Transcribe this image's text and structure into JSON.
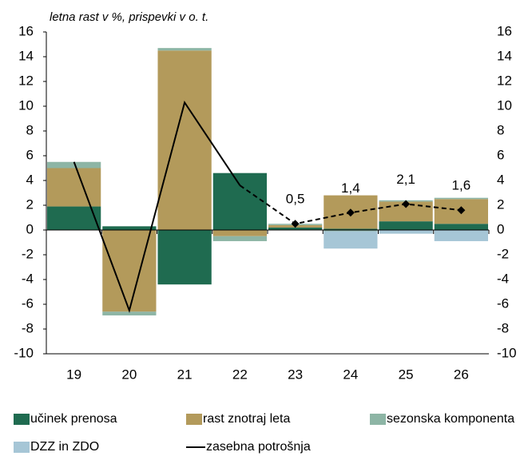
{
  "chart_data": {
    "type": "bar",
    "subtitle": "letna rast v %, prispevki v o. t.",
    "categories": [
      "19",
      "20",
      "21",
      "22",
      "23",
      "24",
      "25",
      "26"
    ],
    "stacked": true,
    "series": [
      {
        "name": "učinek prenosa",
        "color": "#1f6b50",
        "values": [
          1.9,
          0.3,
          -4.4,
          4.6,
          0.2,
          0.1,
          0.7,
          0.5
        ]
      },
      {
        "name": "rast znotraj leta",
        "color": "#b39a5b",
        "values": [
          3.1,
          -6.6,
          14.5,
          -0.5,
          0.2,
          2.7,
          1.6,
          2.0
        ]
      },
      {
        "name": "sezonska komponenta",
        "color": "#8db5a5",
        "values": [
          0.5,
          -0.3,
          0.2,
          -0.4,
          0.1,
          -0.1,
          0.1,
          0.1
        ]
      },
      {
        "name": "DZZ in ZDO",
        "color": "#a6c6d6",
        "values": [
          0,
          0,
          0,
          0,
          0,
          -1.4,
          -0.3,
          -0.9
        ]
      },
      {
        "name": "zasebna potrošnja",
        "type": "line",
        "color": "#000000",
        "dashed_from": 3,
        "values": [
          5.5,
          -6.5,
          10.3,
          3.6,
          0.5,
          1.4,
          2.1,
          1.6
        ],
        "value_labels": [
          null,
          null,
          null,
          null,
          "0,5",
          "1,4",
          "2,1",
          "1,6"
        ]
      }
    ],
    "ylim": [
      -10,
      16
    ],
    "yticks": [
      -10,
      -8,
      -6,
      -4,
      -2,
      0,
      2,
      4,
      6,
      8,
      10,
      12,
      14,
      16
    ],
    "y2lim": [
      -10,
      16
    ],
    "y2ticks": [
      -10,
      -8,
      -6,
      -4,
      -2,
      0,
      2,
      4,
      6,
      8,
      10,
      12,
      14,
      16
    ],
    "grid": false,
    "legend": "bottom"
  }
}
